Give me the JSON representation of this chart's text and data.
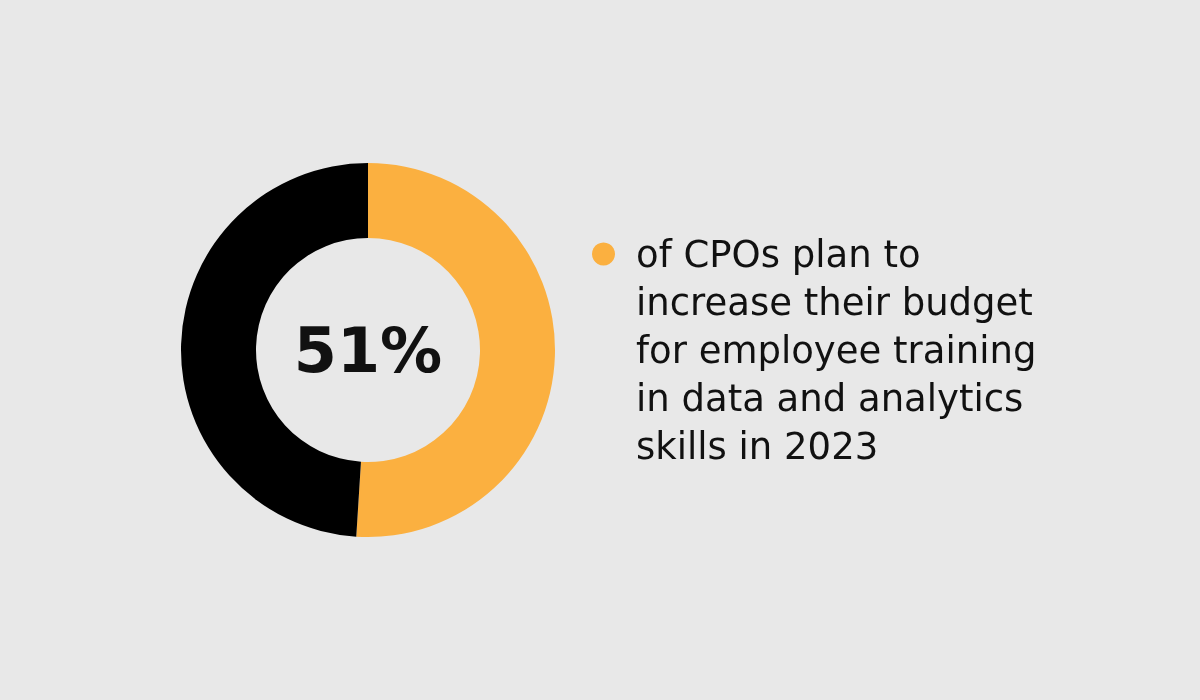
{
  "chart_data": {
    "type": "donut",
    "categories": [
      "of CPOs plan to increase their budget for employee training in data and analytics skills in 2023",
      null
    ],
    "values": [
      51,
      49
    ],
    "colors": [
      "#fbb040",
      "#000000"
    ],
    "value_labels": [
      "51%",
      null
    ],
    "legend": "right"
  }
}
